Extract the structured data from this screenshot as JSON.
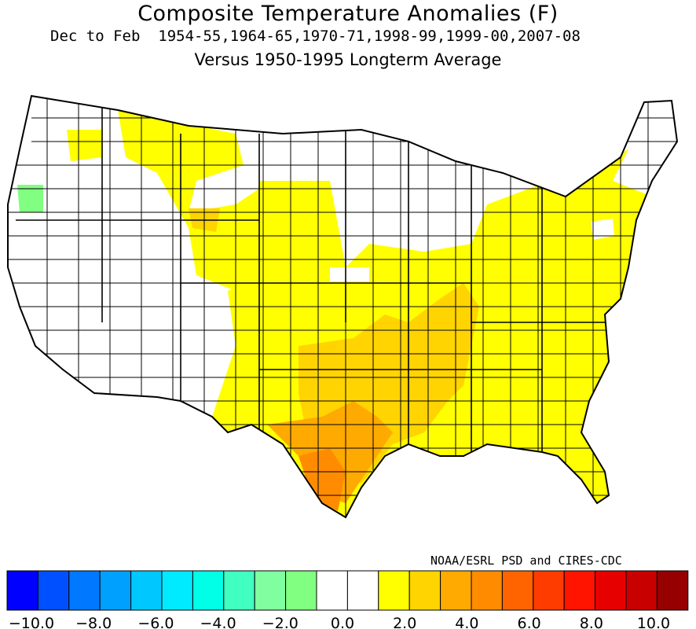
{
  "title": "Composite Temperature Anomalies (F)",
  "subtitle_period": "Dec to Feb  1954-55,1964-65,1970-71,1998-99,1999-00,2007-08",
  "subtitle_base": "Versus 1950-1995 Longterm Average",
  "credit": "NOAA/ESRL PSD and CIRES-CDC",
  "map_data": {
    "region": "Contiguous United States climate divisions",
    "units": "F",
    "anomaly_class_colors": {
      "neutral": "#ffffff",
      "0_to_2": "#ffff00",
      "2_to_3": "#ffd400",
      "3_to_4": "#ffaa00",
      "4_to_5": "#ff8c00",
      "-2_to_-1": "#80ff80"
    }
  },
  "colorbar": {
    "colors": [
      "#0000ff",
      "#0050ff",
      "#0078ff",
      "#00a0ff",
      "#00c8ff",
      "#00ebff",
      "#00ffe6",
      "#40ffc0",
      "#80ffa0",
      "#80ff80",
      "#ffffff",
      "#ffffff",
      "#ffff00",
      "#ffd400",
      "#ffaa00",
      "#ff8c00",
      "#ff6400",
      "#ff3c00",
      "#ff1400",
      "#e60000",
      "#c80000",
      "#960000"
    ],
    "tick_labels": [
      "-10.0",
      "-8.0",
      "-6.0",
      "-4.0",
      "-2.0",
      "0.0",
      "2.0",
      "4.0",
      "6.0",
      "8.0",
      "10.0"
    ]
  }
}
